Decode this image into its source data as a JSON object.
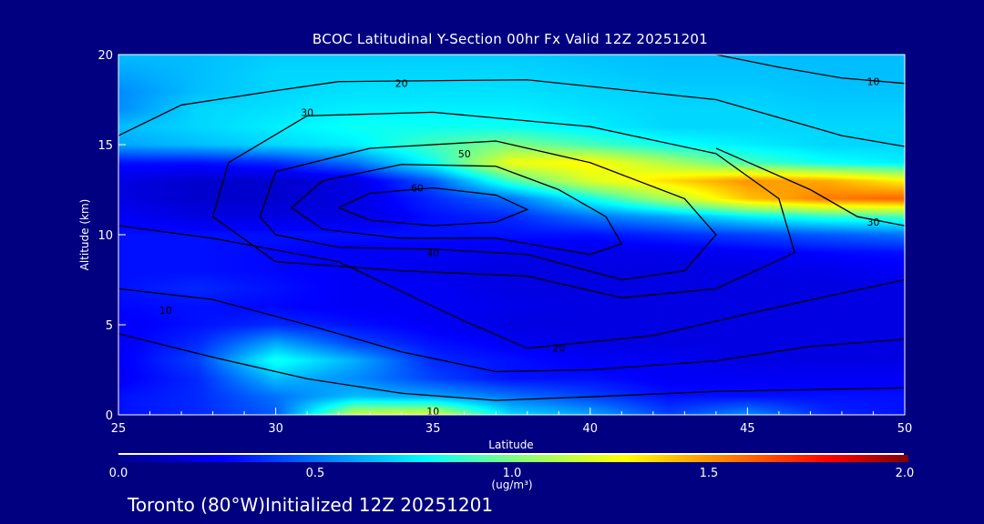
{
  "title": "BCOC Latitudinal Y-Section 00hr  Fx Valid 12Z 20251201",
  "footer": "Toronto (80°W)Initialized 12Z 20251201",
  "background": "#000080",
  "chart_data": {
    "type": "heatmap",
    "title": "BCOC Latitudinal Y-Section 00hr  Fx Valid 12Z 20251201",
    "xlabel": "Latitude",
    "ylabel": "Altitude (km)",
    "xlim": [
      25,
      50
    ],
    "ylim": [
      0,
      20
    ],
    "xticks": [
      25,
      30,
      35,
      40,
      45,
      50
    ],
    "yticks": [
      0,
      5,
      10,
      15,
      20
    ],
    "colorbar": {
      "range": [
        0,
        2
      ],
      "ticks": [
        "0.0",
        "0.5",
        "1.0",
        "1.5",
        "2.0"
      ],
      "units": "(ug/m³)",
      "stops": [
        [
          0,
          "#000090"
        ],
        [
          0.27,
          "#0000ff"
        ],
        [
          0.78,
          "#00ffff"
        ],
        [
          1.0,
          "#80ff80"
        ],
        [
          1.28,
          "#ffff00"
        ],
        [
          1.8,
          "#ff0000"
        ],
        [
          2.0,
          "#800000"
        ]
      ]
    },
    "grid_lat": [
      25,
      27.5,
      30,
      32.5,
      35,
      37.5,
      40,
      42.5,
      45,
      47.5,
      50
    ],
    "grid_alt": [
      0,
      1,
      2,
      3,
      4,
      5,
      6,
      7,
      8,
      9,
      10,
      11,
      12,
      13,
      14,
      15,
      16,
      17,
      18,
      19,
      20
    ],
    "values": [
      [
        0.3,
        0.35,
        0.45,
        1.15,
        1.2,
        0.7,
        0.6,
        0.4,
        0.55,
        0.35,
        0.3
      ],
      [
        0.3,
        0.35,
        0.5,
        0.65,
        0.6,
        0.5,
        0.4,
        0.3,
        0.3,
        0.3,
        0.3
      ],
      [
        0.25,
        0.35,
        0.65,
        0.55,
        0.4,
        0.3,
        0.3,
        0.25,
        0.25,
        0.25,
        0.25
      ],
      [
        0.25,
        0.4,
        0.82,
        0.62,
        0.35,
        0.3,
        0.25,
        0.25,
        0.2,
        0.2,
        0.2
      ],
      [
        0.25,
        0.35,
        0.6,
        0.4,
        0.3,
        0.25,
        0.2,
        0.2,
        0.2,
        0.2,
        0.2
      ],
      [
        0.25,
        0.3,
        0.35,
        0.3,
        0.25,
        0.2,
        0.2,
        0.2,
        0.2,
        0.2,
        0.2
      ],
      [
        0.28,
        0.3,
        0.28,
        0.25,
        0.25,
        0.22,
        0.2,
        0.2,
        0.2,
        0.2,
        0.2
      ],
      [
        0.3,
        0.35,
        0.3,
        0.25,
        0.25,
        0.2,
        0.2,
        0.2,
        0.2,
        0.2,
        0.2
      ],
      [
        0.3,
        0.3,
        0.28,
        0.25,
        0.22,
        0.2,
        0.2,
        0.2,
        0.2,
        0.22,
        0.25
      ],
      [
        0.3,
        0.3,
        0.28,
        0.25,
        0.25,
        0.22,
        0.22,
        0.22,
        0.25,
        0.28,
        0.3
      ],
      [
        0.3,
        0.3,
        0.3,
        0.3,
        0.3,
        0.3,
        0.3,
        0.35,
        0.4,
        0.45,
        0.5
      ],
      [
        0.25,
        0.2,
        0.2,
        0.2,
        0.3,
        0.35,
        0.5,
        0.6,
        0.75,
        0.85,
        0.9
      ],
      [
        0.2,
        0.15,
        0.15,
        0.2,
        0.35,
        0.5,
        0.8,
        1.1,
        1.4,
        1.55,
        1.6
      ],
      [
        0.2,
        0.15,
        0.15,
        0.2,
        0.45,
        0.9,
        1.2,
        1.35,
        1.5,
        1.45,
        1.3
      ],
      [
        0.3,
        0.3,
        0.35,
        0.5,
        0.8,
        1.25,
        1.3,
        1.1,
        0.9,
        0.8,
        0.75
      ],
      [
        0.6,
        0.65,
        0.7,
        0.75,
        0.9,
        1.0,
        0.9,
        0.8,
        0.75,
        0.7,
        0.7
      ],
      [
        0.65,
        0.7,
        0.75,
        0.8,
        0.8,
        0.8,
        0.75,
        0.7,
        0.7,
        0.7,
        0.7
      ],
      [
        0.55,
        0.7,
        0.72,
        0.75,
        0.75,
        0.75,
        0.72,
        0.7,
        0.7,
        0.68,
        0.68
      ],
      [
        0.55,
        0.65,
        0.7,
        0.72,
        0.72,
        0.72,
        0.7,
        0.68,
        0.68,
        0.66,
        0.66
      ],
      [
        0.6,
        0.65,
        0.7,
        0.7,
        0.7,
        0.7,
        0.68,
        0.66,
        0.66,
        0.65,
        0.65
      ],
      [
        0.65,
        0.65,
        0.68,
        0.68,
        0.68,
        0.68,
        0.66,
        0.65,
        0.65,
        0.65,
        0.65
      ]
    ],
    "contours": [
      {
        "label": "60",
        "label_at": [
          34.5,
          12.6
        ],
        "points": [
          [
            32,
            11.5
          ],
          [
            33,
            12.3
          ],
          [
            35,
            12.6
          ],
          [
            37,
            12.2
          ],
          [
            38,
            11.4
          ],
          [
            37,
            10.7
          ],
          [
            35,
            10.5
          ],
          [
            33,
            10.8
          ],
          [
            32,
            11.5
          ]
        ]
      },
      {
        "label": "50",
        "label_at": [
          36,
          14.5
        ],
        "points": [
          [
            30.5,
            11.5
          ],
          [
            31.5,
            13
          ],
          [
            34,
            13.9
          ],
          [
            37,
            13.8
          ],
          [
            39,
            12.5
          ],
          [
            40.5,
            11
          ],
          [
            41,
            9.5
          ],
          [
            40,
            8.9
          ],
          [
            37,
            9.8
          ],
          [
            34,
            9.8
          ],
          [
            31.5,
            10.3
          ],
          [
            30.5,
            11.5
          ]
        ]
      },
      {
        "label": "40",
        "label_at": [
          35,
          9.0
        ],
        "points": [
          [
            29.5,
            11
          ],
          [
            30,
            13.5
          ],
          [
            33,
            14.8
          ],
          [
            37,
            15.2
          ],
          [
            40,
            14
          ],
          [
            43,
            12
          ],
          [
            44,
            10
          ],
          [
            43,
            8
          ],
          [
            41,
            7.5
          ],
          [
            38,
            8.9
          ],
          [
            35,
            9.2
          ],
          [
            32,
            9.3
          ],
          [
            30,
            10
          ],
          [
            29.5,
            11
          ]
        ]
      },
      {
        "label": "30",
        "label_at": [
          31,
          16.8
        ],
        "points": [
          [
            28,
            11
          ],
          [
            28.5,
            14
          ],
          [
            31,
            16.6
          ],
          [
            35,
            16.8
          ],
          [
            40,
            16
          ],
          [
            44,
            14.5
          ],
          [
            46,
            12
          ],
          [
            46.5,
            9
          ],
          [
            44,
            7
          ],
          [
            41,
            6.5
          ],
          [
            38,
            7.7
          ],
          [
            34,
            8
          ],
          [
            30,
            8.5
          ],
          [
            28,
            11
          ]
        ]
      },
      {
        "label": "20",
        "label_at": [
          34,
          18.4
        ],
        "points": [
          [
            25,
            15.5
          ],
          [
            27,
            17.2
          ],
          [
            30,
            18
          ],
          [
            32,
            18.5
          ],
          [
            38,
            18.6
          ],
          [
            44,
            17.5
          ],
          [
            48,
            15.5
          ],
          [
            50,
            14.9
          ]
        ]
      },
      {
        "label": "10",
        "label_at": [
          49,
          18.5
        ],
        "points": [
          [
            44,
            20
          ],
          [
            46,
            19.3
          ],
          [
            48,
            18.7
          ],
          [
            50,
            18.4
          ]
        ]
      },
      {
        "label": "30",
        "label_at": [
          49,
          10.7
        ],
        "points": [
          [
            44,
            14.8
          ],
          [
            47,
            12.5
          ],
          [
            48.5,
            11
          ],
          [
            50,
            10.5
          ]
        ]
      },
      {
        "label": "20",
        "label_at": [
          39,
          3.7
        ],
        "points": [
          [
            25,
            10.5
          ],
          [
            28,
            9.8
          ],
          [
            32,
            8.5
          ],
          [
            36,
            5.2
          ],
          [
            38,
            3.7
          ],
          [
            42,
            4.4
          ],
          [
            46,
            6
          ],
          [
            50,
            7.5
          ]
        ]
      },
      {
        "label": "10",
        "label_at": [
          26.5,
          5.8
        ],
        "points": [
          [
            25,
            7
          ],
          [
            28,
            6.4
          ],
          [
            31,
            5
          ],
          [
            34,
            3.5
          ],
          [
            37,
            2.4
          ],
          [
            40,
            2.5
          ],
          [
            44,
            3
          ],
          [
            47,
            3.8
          ],
          [
            50,
            4.2
          ]
        ]
      },
      {
        "label": "10",
        "label_at": [
          35,
          0.2
        ],
        "points": [
          [
            25,
            4.5
          ],
          [
            28,
            3.2
          ],
          [
            31,
            2
          ],
          [
            34,
            1.2
          ],
          [
            37,
            0.8
          ],
          [
            40,
            1
          ],
          [
            44,
            1.3
          ],
          [
            50,
            1.5
          ]
        ]
      }
    ]
  }
}
